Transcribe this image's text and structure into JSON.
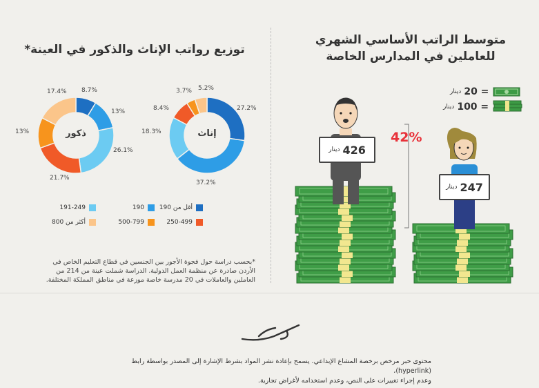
{
  "left_panel": {
    "title": "توزيع رواتب الإناث والذكور في العينة*"
  },
  "right_panel": {
    "title_line1": "متوسط الراتب الأساسي الشهري",
    "title_line2": "للعاملين في المدارس الخاصة",
    "money_legend": [
      {
        "value": "= 20",
        "unit": "دينار",
        "icon": "single-banknote-icon"
      },
      {
        "value": "= 100",
        "unit": "دينار",
        "icon": "banknote-stack-icon"
      }
    ],
    "gap_label": "42%",
    "male_sign": {
      "value": "426",
      "unit": "دينار"
    },
    "female_sign": {
      "value": "247",
      "unit": "دينار"
    }
  },
  "legend": [
    {
      "label": "أقل من 190",
      "color": "#1e6fc2"
    },
    {
      "label": "190",
      "color": "#2e9de6"
    },
    {
      "label": "191-249",
      "color": "#6ccbf2"
    },
    {
      "label": "250-499",
      "color": "#f05a28"
    },
    {
      "label": "500-799",
      "color": "#f7941d"
    },
    {
      "label": "أكثر من 800",
      "color": "#fbc58a"
    }
  ],
  "note": "*بحسب دراسة حول فجوة الأجور بين الجنسين في قطاع التعليم الخاص في الأردن صادرة عن منظمة العمل الدولية. الدراسة شملت عينة من 214 من العاملين والعاملات في 20 مدرسة خاصة موزعة في مناطق المملكة المختلفة.",
  "footer": {
    "line1": "محتوى حبر مرخص برخصة المشاع الإبداعي. يسمح بإعادة نشر المواد بشرط الإشارة إلى المصدر بواسطة رابط (hyperlink)،",
    "line2": "وعدم إجراء تغييرات على النص، وعدم استخدامه لأغراض تجارية."
  },
  "chart_data": [
    {
      "type": "pie",
      "title": "",
      "center_label": "إناث",
      "categories": [
        "أقل من 190",
        "190",
        "191-249",
        "250-499",
        "500-799",
        "أكثر من 800"
      ],
      "values": [
        27.2,
        37.2,
        18.3,
        8.4,
        3.7,
        5.2
      ],
      "labels": [
        "27.2%",
        "37.2%",
        "18.3%",
        "8.4%",
        "3.7%",
        "5.2%"
      ]
    },
    {
      "type": "pie",
      "title": "",
      "center_label": "ذكور",
      "categories": [
        "أقل من 190",
        "190",
        "191-249",
        "250-499",
        "500-799",
        "أكثر من 800"
      ],
      "values": [
        8.7,
        13,
        26.1,
        21.7,
        13,
        17.4
      ],
      "labels": [
        "8.7%",
        "13%",
        "26.1%",
        "21.7%",
        "13%",
        "17.4%"
      ]
    },
    {
      "type": "bar",
      "title": "",
      "categories": [
        "male",
        "female"
      ],
      "values": [
        426,
        247
      ]
    }
  ]
}
